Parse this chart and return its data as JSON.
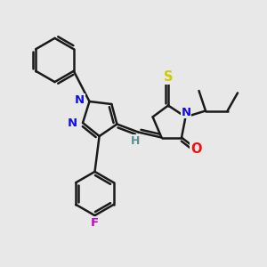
{
  "bg_color": "#e8e8e8",
  "bond_color": "#1a1a1a",
  "bond_width": 1.8,
  "figsize": [
    3.0,
    3.0
  ],
  "dpi": 100,
  "colors": {
    "N": "#1010ee",
    "O": "#ee1010",
    "S": "#cccc00",
    "F": "#cc00cc",
    "H": "#5a9090",
    "C": "#1a1a1a"
  }
}
